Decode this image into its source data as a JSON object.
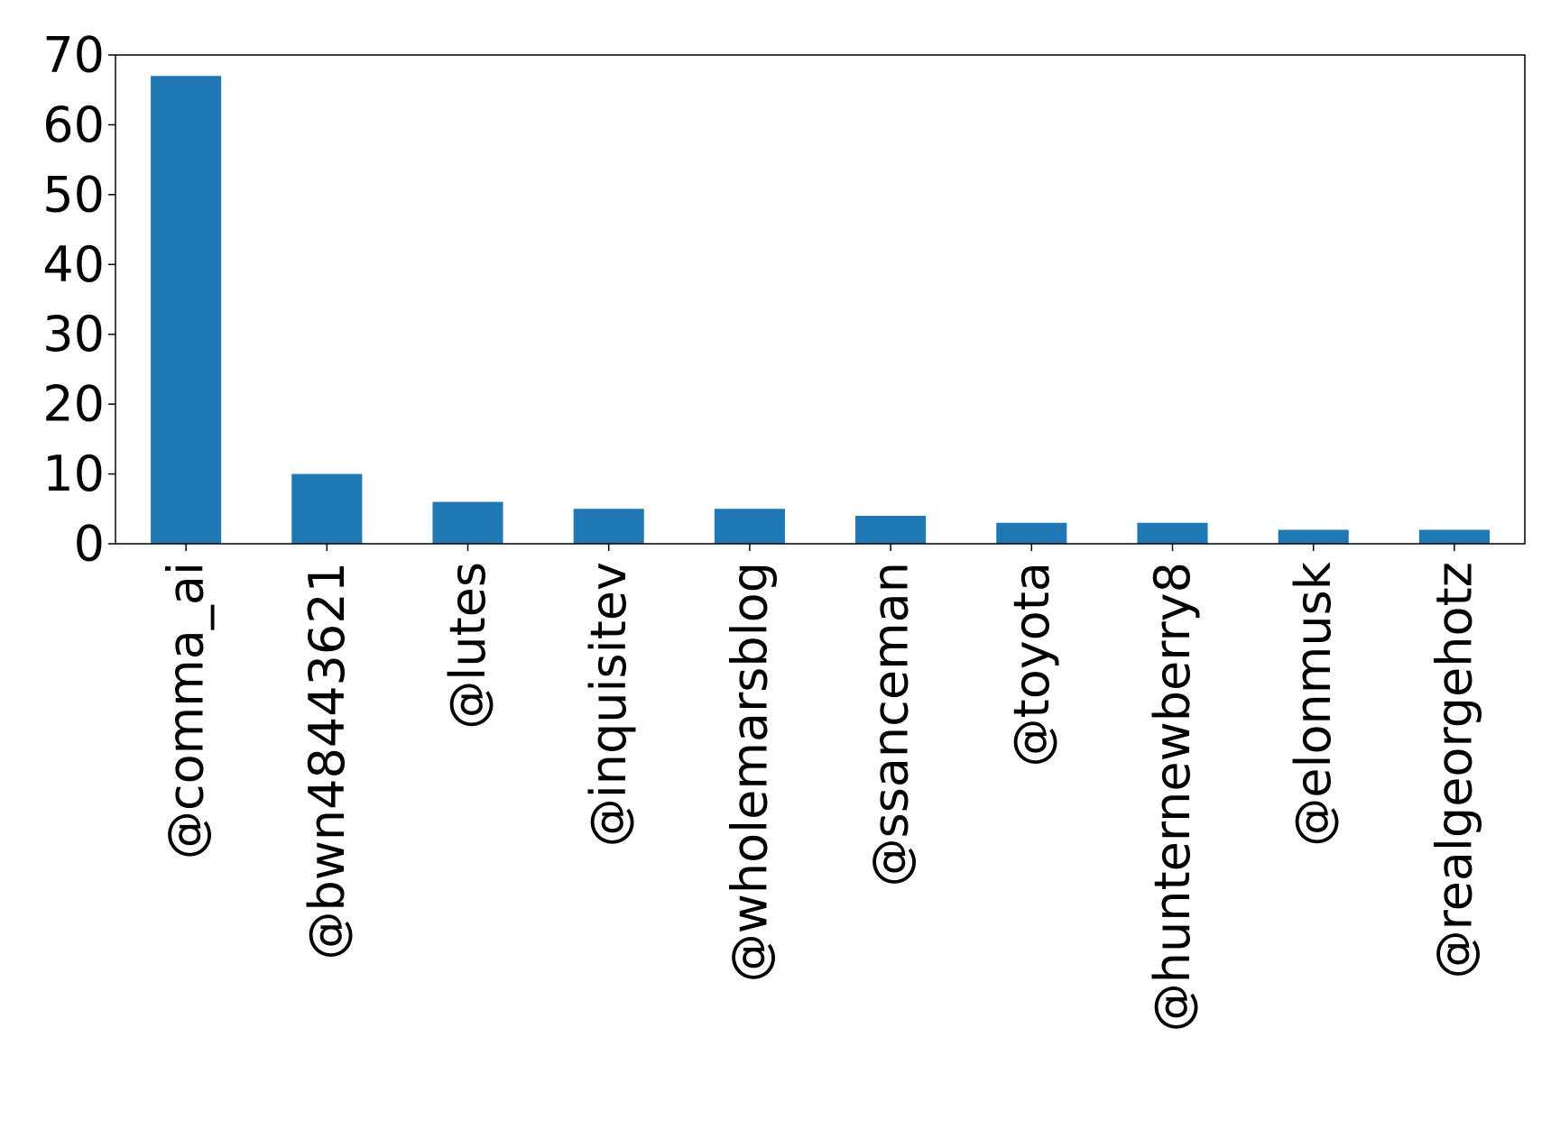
{
  "chart_data": {
    "type": "bar",
    "categories": [
      "@comma_ai",
      "@bwn48443621",
      "@lutes",
      "@inquisitev",
      "@wholemarsblog",
      "@ssanceman",
      "@toyota",
      "@hunternewberry8",
      "@elonmusk",
      "@realgeorgehotz"
    ],
    "values": [
      67,
      10,
      6,
      5,
      5,
      4,
      3,
      3,
      2,
      2
    ],
    "title": "",
    "xlabel": "",
    "ylabel": "",
    "ylim": [
      0,
      70
    ],
    "yticks": [
      0,
      10,
      20,
      30,
      40,
      50,
      60,
      70
    ],
    "grid": false,
    "legend": "none",
    "bar_color": "#1f77b4"
  }
}
